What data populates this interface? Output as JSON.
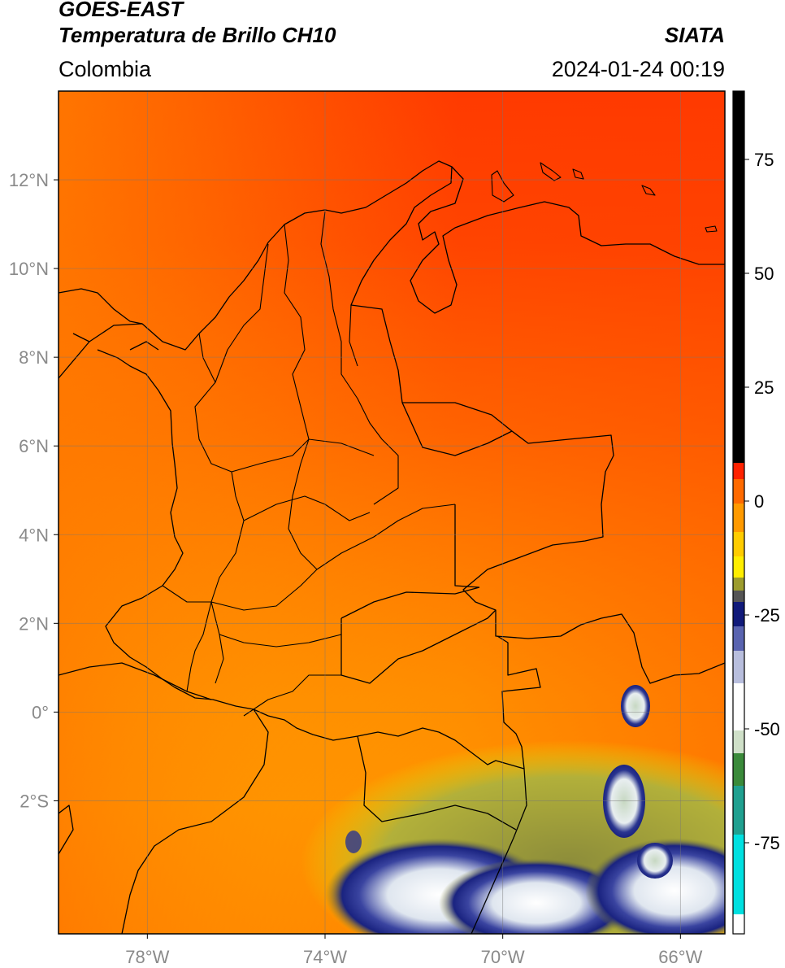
{
  "header": {
    "title_line1": "GOES-EAST",
    "title_line2": "Temperatura de Brillo CH10",
    "region": "Colombia",
    "brand": "SIATA",
    "timestamp": "2024-01-24 00:19"
  },
  "map": {
    "lon_range": [
      -80,
      -65
    ],
    "lat_range": [
      -5,
      14
    ],
    "lon_ticks": [
      {
        "value": -78,
        "label": "78°W"
      },
      {
        "value": -74,
        "label": "74°W"
      },
      {
        "value": -70,
        "label": "70°W"
      },
      {
        "value": -66,
        "label": "66°W"
      }
    ],
    "lat_ticks": [
      {
        "value": 12,
        "label": "12°N"
      },
      {
        "value": 10,
        "label": "10°N"
      },
      {
        "value": 8,
        "label": "8°N"
      },
      {
        "value": 6,
        "label": "6°N"
      },
      {
        "value": 4,
        "label": "4°N"
      },
      {
        "value": 2,
        "label": "2°N"
      },
      {
        "value": 0,
        "label": "0°"
      },
      {
        "value": -2,
        "label": "2°S"
      }
    ],
    "grid": true,
    "colors": {
      "warm_red": "#ff3300",
      "orange": "#ff8c00",
      "yellow": "#ffee00",
      "olive": "#9a9a2a",
      "navy": "#111a7a",
      "white": "#ffffff",
      "green": "#3a8a3a",
      "cyan": "#00e0e0"
    }
  },
  "colorbar": {
    "range": [
      -95,
      90
    ],
    "ticks": [
      {
        "value": 75,
        "label": "75"
      },
      {
        "value": 50,
        "label": "50"
      },
      {
        "value": 25,
        "label": "25"
      },
      {
        "value": 0,
        "label": "0"
      },
      {
        "value": -25,
        "label": "-25"
      },
      {
        "value": -50,
        "label": "-50"
      },
      {
        "value": -75,
        "label": "-75"
      }
    ]
  }
}
